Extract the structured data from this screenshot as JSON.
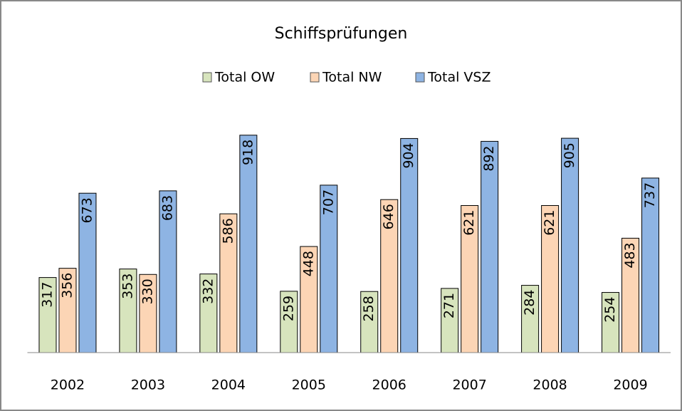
{
  "chart_data": {
    "type": "bar",
    "title": "Schiffsprüfungen",
    "categories": [
      "2002",
      "2003",
      "2004",
      "2005",
      "2006",
      "2007",
      "2008",
      "2009"
    ],
    "series": [
      {
        "name": "Total OW",
        "color": "#d7e4bd",
        "values": [
          317,
          353,
          332,
          259,
          258,
          271,
          284,
          254
        ]
      },
      {
        "name": "Total NW",
        "color": "#fcd5b5",
        "values": [
          356,
          330,
          586,
          448,
          646,
          621,
          621,
          483
        ]
      },
      {
        "name": "Total VSZ",
        "color": "#8eb4e3",
        "values": [
          673,
          683,
          918,
          707,
          904,
          892,
          905,
          737
        ]
      }
    ],
    "legend": "top"
  }
}
